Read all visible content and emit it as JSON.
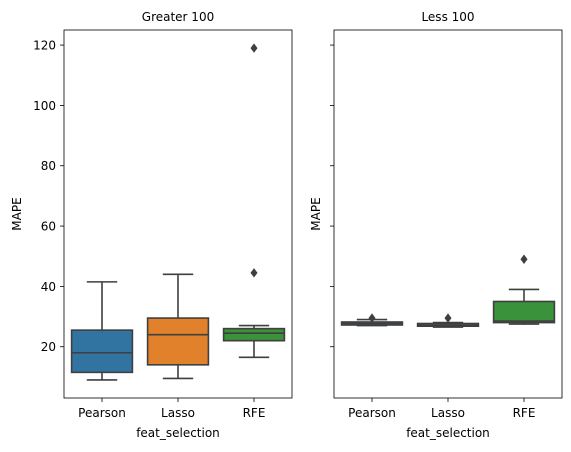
{
  "chart_data": [
    {
      "type": "boxplot",
      "title": "Greater 100",
      "xlabel": "feat_selection",
      "ylabel": "MAPE",
      "ylim": [
        3,
        125
      ],
      "yticks": [
        20,
        40,
        60,
        80,
        100,
        120
      ],
      "categories": [
        "Pearson",
        "Lasso",
        "RFE"
      ],
      "colors": [
        "#3274a1",
        "#e1812c",
        "#3a923a"
      ],
      "boxes": [
        {
          "category": "Pearson",
          "whisker_low": 9,
          "q1": 11.5,
          "median": 18,
          "q3": 25.5,
          "whisker_high": 41.5,
          "outliers": []
        },
        {
          "category": "Lasso",
          "whisker_low": 9.5,
          "q1": 14,
          "median": 24,
          "q3": 29.5,
          "whisker_high": 44,
          "outliers": []
        },
        {
          "category": "RFE",
          "whisker_low": 16.5,
          "q1": 22,
          "median": 24.5,
          "q3": 26,
          "whisker_high": 27,
          "outliers": [
            44.5,
            119
          ]
        }
      ]
    },
    {
      "type": "boxplot",
      "title": "Less 100",
      "xlabel": "feat_selection",
      "ylabel": "MAPE",
      "ylim": [
        3,
        125
      ],
      "yticks": [
        20,
        40,
        60,
        80,
        100,
        120
      ],
      "shared_y": true,
      "categories": [
        "Pearson",
        "Lasso",
        "RFE"
      ],
      "colors": [
        "#3274a1",
        "#e1812c",
        "#3a923a"
      ],
      "boxes": [
        {
          "category": "Pearson",
          "whisker_low": 27,
          "q1": 27.2,
          "median": 27.7,
          "q3": 28.2,
          "whisker_high": 29,
          "outliers": [
            29.5
          ]
        },
        {
          "category": "Lasso",
          "whisker_low": 26.5,
          "q1": 26.8,
          "median": 27.2,
          "q3": 27.7,
          "whisker_high": 28,
          "outliers": [
            29.5
          ]
        },
        {
          "category": "RFE",
          "whisker_low": 27.5,
          "q1": 28,
          "median": 28.5,
          "q3": 35,
          "whisker_high": 39,
          "outliers": [
            49
          ]
        }
      ]
    }
  ]
}
